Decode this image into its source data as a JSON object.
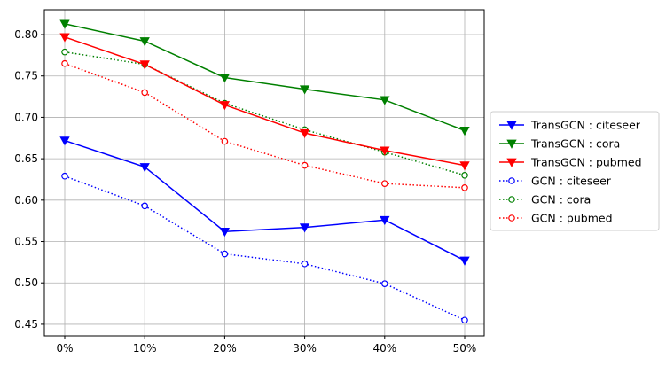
{
  "chart_data": {
    "type": "line",
    "title": "",
    "xlabel": "",
    "ylabel": "",
    "categories": [
      "0%",
      "10%",
      "20%",
      "30%",
      "40%",
      "50%"
    ],
    "ylim": [
      0.436,
      0.83
    ],
    "yticks": [
      0.45,
      0.5,
      0.55,
      0.6,
      0.65,
      0.7,
      0.75,
      0.8
    ],
    "ytick_labels": [
      "0.45",
      "0.50",
      "0.55",
      "0.60",
      "0.65",
      "0.70",
      "0.75",
      "0.80"
    ],
    "grid": true,
    "legend_placement": "outside-right",
    "series": [
      {
        "name": "TransGCN : citeseer",
        "color": "#0000ff",
        "linestyle": "solid",
        "marker": "triangle-down",
        "values": [
          0.672,
          0.64,
          0.562,
          0.567,
          0.576,
          0.527
        ]
      },
      {
        "name": "TransGCN : cora",
        "color": "#008000",
        "linestyle": "solid",
        "marker": "triangle-down",
        "values": [
          0.813,
          0.792,
          0.748,
          0.734,
          0.721,
          0.684
        ]
      },
      {
        "name": "TransGCN : pubmed",
        "color": "#ff0000",
        "linestyle": "solid",
        "marker": "triangle-down",
        "values": [
          0.797,
          0.764,
          0.715,
          0.681,
          0.66,
          0.642
        ]
      },
      {
        "name": "GCN : citeseer",
        "color": "#0000ff",
        "linestyle": "dotted",
        "marker": "circle-open",
        "values": [
          0.629,
          0.593,
          0.535,
          0.523,
          0.499,
          0.455
        ]
      },
      {
        "name": "GCN : cora",
        "color": "#008000",
        "linestyle": "dotted",
        "marker": "circle-open",
        "values": [
          0.779,
          0.764,
          0.717,
          0.685,
          0.658,
          0.63
        ]
      },
      {
        "name": "GCN : pubmed",
        "color": "#ff0000",
        "linestyle": "dotted",
        "marker": "circle-open",
        "values": [
          0.765,
          0.73,
          0.671,
          0.642,
          0.62,
          0.615
        ]
      }
    ]
  }
}
